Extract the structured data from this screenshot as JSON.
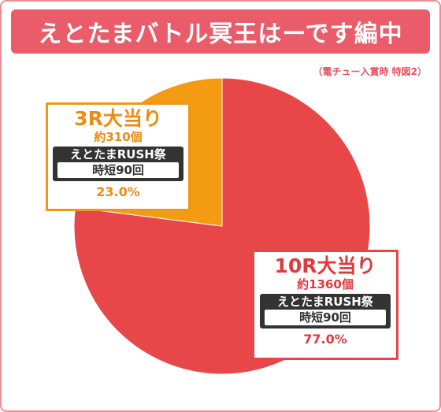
{
  "header": {
    "title": "えとたまバトル冥王はーです編中",
    "subtitle": "（電チュー入賞時 特図2）"
  },
  "colors": {
    "title_bg": "#ea5c6a",
    "slice_10r": "#e8474a",
    "slice_3r": "#f39c12",
    "border": "#ec8f97"
  },
  "chart_data": {
    "type": "pie",
    "title": "えとたまバトル冥王はーです編中",
    "subtitle": "（電チュー入賞時 特図2）",
    "slices": [
      {
        "name": "10R大当り",
        "count": "約1360個",
        "rush": "えとたまRUSH祭",
        "jitan": "時短90回",
        "percent_label": "77.0%",
        "value": 77.0,
        "color": "#e8474a"
      },
      {
        "name": "3R大当り",
        "count": "約310個",
        "rush": "えとたまRUSH祭",
        "jitan": "時短90回",
        "percent_label": "23.0%",
        "value": 23.0,
        "color": "#f39c12"
      }
    ]
  }
}
